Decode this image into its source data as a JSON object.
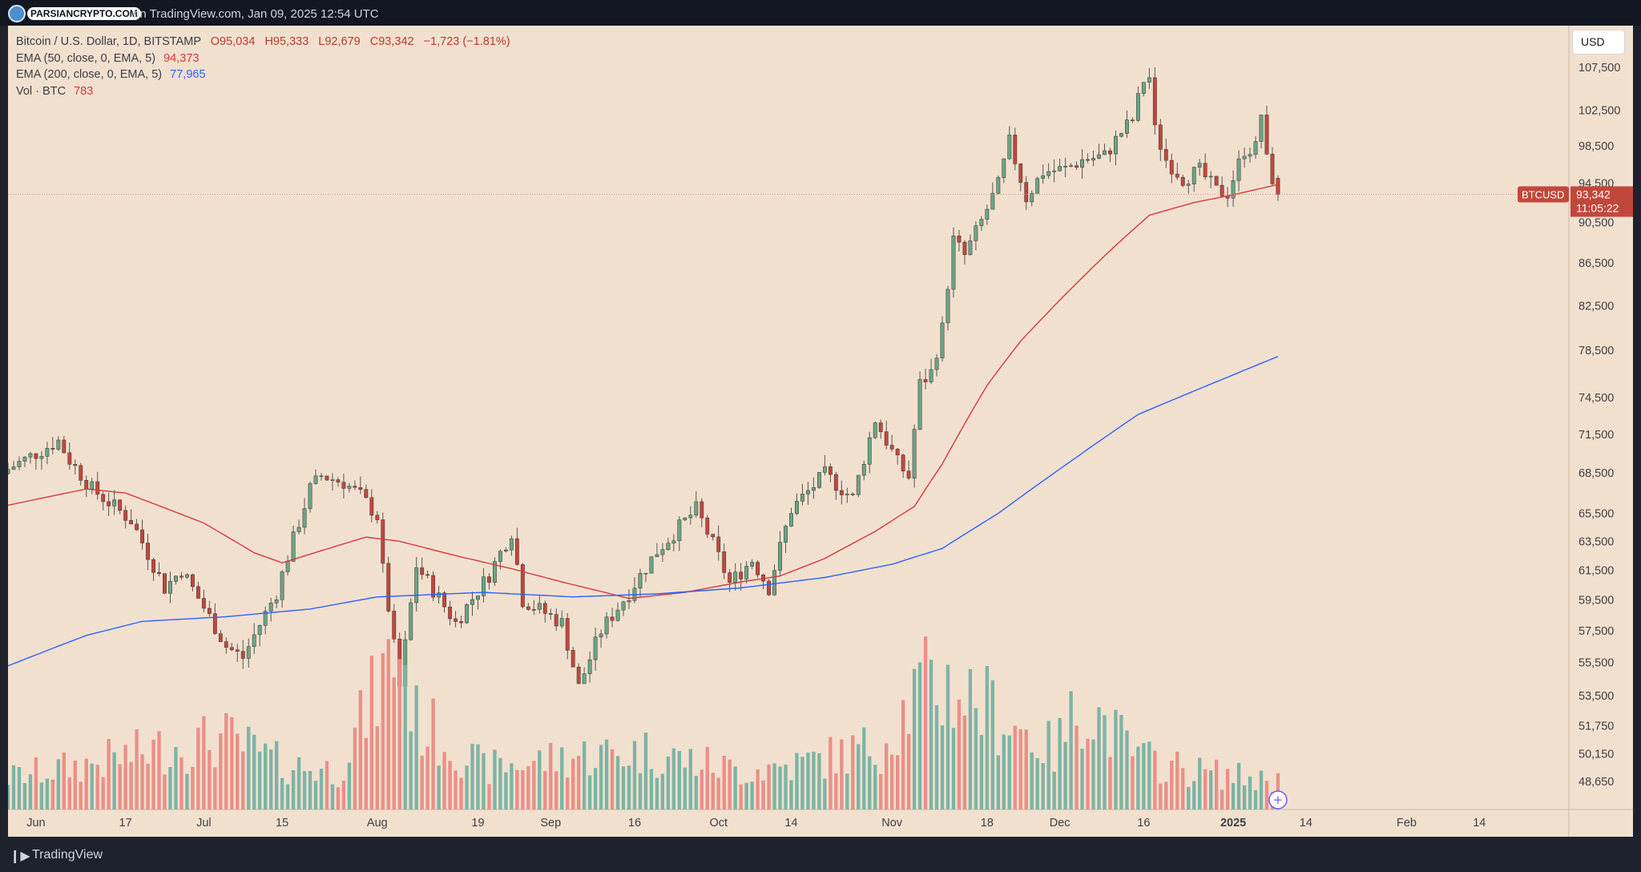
{
  "header": {
    "brand": "PARSIANCRYPTO.COM",
    "caption": "on TradingView.com, Jan 09, 2025 12:54 UTC"
  },
  "legend": {
    "symbol": "Bitcoin / U.S. Dollar, 1D, BITSTAMP",
    "open": "O95,034",
    "high": "H95,333",
    "low": "L92,679",
    "close": "C93,342",
    "change": "−1,723 (−1.81%)",
    "ema50_label": "EMA (50, close, 0, EMA, 5)",
    "ema50_value": "94,373",
    "ema200_label": "EMA (200, close, 0, EMA, 5)",
    "ema200_value": "77,965",
    "vol_label": "Vol · BTC",
    "vol_value": "783"
  },
  "currency_button": "USD",
  "footer": {
    "brand": "TradingView"
  },
  "colors": {
    "background": "#f2e0cf",
    "up_candle": "#6aa583",
    "down_candle": "#c2473b",
    "up_volume": "#7cb4a5",
    "down_volume": "#ea8f87",
    "ema50": "#d8383a",
    "ema200": "#2962ff"
  },
  "chart_data": {
    "type": "candlestick",
    "symbol": "BTCUSD",
    "price_ticks": [
      "107,500",
      "102,500",
      "98,500",
      "94,500",
      "90,500",
      "86,500",
      "82,500",
      "78,500",
      "74,500",
      "71,500",
      "68,500",
      "65,500",
      "63,500",
      "61,500",
      "59,500",
      "57,500",
      "55,500",
      "53,500",
      "51,750",
      "50,150",
      "48,650"
    ],
    "ylim": [
      47400,
      110000
    ],
    "x_ticks": [
      {
        "label": "Jun",
        "date": "2024-06-01"
      },
      {
        "label": "17",
        "date": "2024-06-17"
      },
      {
        "label": "Jul",
        "date": "2024-07-01"
      },
      {
        "label": "15",
        "date": "2024-07-15"
      },
      {
        "label": "Aug",
        "date": "2024-08-01"
      },
      {
        "label": "19",
        "date": "2024-08-19"
      },
      {
        "label": "Sep",
        "date": "2024-09-01"
      },
      {
        "label": "16",
        "date": "2024-09-16"
      },
      {
        "label": "Oct",
        "date": "2024-10-01"
      },
      {
        "label": "14",
        "date": "2024-10-14"
      },
      {
        "label": "Nov",
        "date": "2024-11-01"
      },
      {
        "label": "18",
        "date": "2024-11-18"
      },
      {
        "label": "Dec",
        "date": "2024-12-01"
      },
      {
        "label": "16",
        "date": "2024-12-16"
      },
      {
        "label": "2025",
        "date": "2025-01-01"
      },
      {
        "label": "14",
        "date": "2025-01-14"
      },
      {
        "label": "Feb",
        "date": "2025-02-01"
      },
      {
        "label": "14",
        "date": "2025-02-14"
      }
    ],
    "x_start": "2024-05-27",
    "x_end": "2025-03-02",
    "last_price": {
      "ticker": "BTCUSD",
      "price": "93,342",
      "countdown": "11:05:22",
      "value": 93342
    },
    "close_keyframes": [
      [
        "2024-05-27",
        68800
      ],
      [
        "2024-06-05",
        71000
      ],
      [
        "2024-06-07",
        69500
      ],
      [
        "2024-06-11",
        67300
      ],
      [
        "2024-06-18",
        65000
      ],
      [
        "2024-06-24",
        60300
      ],
      [
        "2024-06-27",
        61500
      ],
      [
        "2024-07-05",
        56500
      ],
      [
        "2024-07-08",
        55800
      ],
      [
        "2024-07-14",
        60000
      ],
      [
        "2024-07-20",
        67300
      ],
      [
        "2024-07-22",
        68300
      ],
      [
        "2024-07-26",
        67800
      ],
      [
        "2024-07-29",
        66800
      ],
      [
        "2024-08-01",
        65300
      ],
      [
        "2024-08-02",
        61500
      ],
      [
        "2024-08-05",
        54000
      ],
      [
        "2024-08-08",
        61800
      ],
      [
        "2024-08-15",
        58000
      ],
      [
        "2024-08-21",
        61200
      ],
      [
        "2024-08-25",
        64200
      ],
      [
        "2024-08-27",
        59500
      ],
      [
        "2024-09-03",
        58000
      ],
      [
        "2024-09-06",
        54000
      ],
      [
        "2024-09-10",
        57500
      ],
      [
        "2024-09-15",
        60000
      ],
      [
        "2024-09-18",
        61700
      ],
      [
        "2024-09-20",
        62800
      ],
      [
        "2024-09-27",
        65800
      ],
      [
        "2024-09-30",
        63300
      ],
      [
        "2024-10-03",
        60600
      ],
      [
        "2024-10-07",
        62200
      ],
      [
        "2024-10-10",
        60300
      ],
      [
        "2024-10-14",
        65800
      ],
      [
        "2024-10-20",
        68400
      ],
      [
        "2024-10-25",
        66600
      ],
      [
        "2024-10-29",
        72700
      ],
      [
        "2024-11-02",
        69300
      ],
      [
        "2024-11-04",
        68200
      ],
      [
        "2024-11-06",
        75600
      ],
      [
        "2024-11-08",
        76600
      ],
      [
        "2024-11-10",
        80400
      ],
      [
        "2024-11-12",
        88700
      ],
      [
        "2024-11-14",
        87200
      ],
      [
        "2024-11-17",
        90600
      ],
      [
        "2024-11-20",
        94300
      ],
      [
        "2024-11-22",
        98900
      ],
      [
        "2024-11-25",
        93000
      ],
      [
        "2024-11-28",
        95700
      ],
      [
        "2024-12-02",
        96000
      ],
      [
        "2024-12-05",
        97000
      ],
      [
        "2024-12-09",
        97400
      ],
      [
        "2024-12-12",
        100000
      ],
      [
        "2024-12-14",
        101400
      ],
      [
        "2024-12-16",
        106000
      ],
      [
        "2024-12-17",
        106300
      ],
      [
        "2024-12-18",
        100200
      ],
      [
        "2024-12-20",
        97000
      ],
      [
        "2024-12-23",
        95000
      ],
      [
        "2024-12-26",
        95800
      ],
      [
        "2024-12-29",
        93700
      ],
      [
        "2024-12-31",
        93500
      ],
      [
        "2025-01-03",
        98100
      ],
      [
        "2025-01-05",
        98300
      ],
      [
        "2025-01-06",
        102100
      ],
      [
        "2025-01-07",
        96900
      ],
      [
        "2025-01-08",
        95034
      ],
      [
        "2025-01-09",
        93342
      ]
    ],
    "ema50_keyframes": [
      [
        "2024-05-27",
        66100
      ],
      [
        "2024-06-10",
        67300
      ],
      [
        "2024-06-17",
        67000
      ],
      [
        "2024-07-01",
        64800
      ],
      [
        "2024-07-10",
        62700
      ],
      [
        "2024-07-15",
        62000
      ],
      [
        "2024-07-30",
        63800
      ],
      [
        "2024-08-05",
        63500
      ],
      [
        "2024-08-15",
        62500
      ],
      [
        "2024-08-25",
        61600
      ],
      [
        "2024-09-03",
        60700
      ],
      [
        "2024-09-15",
        59600
      ],
      [
        "2024-09-25",
        60000
      ],
      [
        "2024-10-05",
        60700
      ],
      [
        "2024-10-12",
        61100
      ],
      [
        "2024-10-20",
        62300
      ],
      [
        "2024-10-29",
        64200
      ],
      [
        "2024-11-05",
        66000
      ],
      [
        "2024-11-10",
        69200
      ],
      [
        "2024-11-18",
        75500
      ],
      [
        "2024-11-24",
        79300
      ],
      [
        "2024-12-01",
        83000
      ],
      [
        "2024-12-10",
        87700
      ],
      [
        "2024-12-17",
        91200
      ],
      [
        "2024-12-25",
        92500
      ],
      [
        "2025-01-01",
        93300
      ],
      [
        "2025-01-09",
        94373
      ]
    ],
    "ema200_keyframes": [
      [
        "2024-05-27",
        55300
      ],
      [
        "2024-06-10",
        57200
      ],
      [
        "2024-06-20",
        58100
      ],
      [
        "2024-07-05",
        58400
      ],
      [
        "2024-07-20",
        58900
      ],
      [
        "2024-08-01",
        59700
      ],
      [
        "2024-08-20",
        60000
      ],
      [
        "2024-09-05",
        59700
      ],
      [
        "2024-09-20",
        59900
      ],
      [
        "2024-10-05",
        60300
      ],
      [
        "2024-10-20",
        61000
      ],
      [
        "2024-11-01",
        61900
      ],
      [
        "2024-11-10",
        63000
      ],
      [
        "2024-11-20",
        65500
      ],
      [
        "2024-12-01",
        68800
      ],
      [
        "2024-12-15",
        73100
      ],
      [
        "2024-12-30",
        76000
      ],
      [
        "2025-01-09",
        77965
      ]
    ],
    "volume_keyframes": [
      [
        "2024-05-27",
        0.25
      ],
      [
        "2024-06-10",
        0.35
      ],
      [
        "2024-06-24",
        0.48
      ],
      [
        "2024-07-05",
        0.55
      ],
      [
        "2024-07-15",
        0.35
      ],
      [
        "2024-07-25",
        0.3
      ],
      [
        "2024-08-05",
        1.3
      ],
      [
        "2024-08-08",
        0.7
      ],
      [
        "2024-08-20",
        0.32
      ],
      [
        "2024-09-06",
        0.42
      ],
      [
        "2024-09-18",
        0.45
      ],
      [
        "2024-10-05",
        0.3
      ],
      [
        "2024-10-15",
        0.35
      ],
      [
        "2024-10-30",
        0.5
      ],
      [
        "2024-11-06",
        0.95
      ],
      [
        "2024-11-12",
        0.95
      ],
      [
        "2024-11-20",
        0.75
      ],
      [
        "2024-11-30",
        0.45
      ],
      [
        "2024-12-05",
        0.85
      ],
      [
        "2024-12-15",
        0.4
      ],
      [
        "2024-12-25",
        0.3
      ],
      [
        "2025-01-09",
        0.22
      ]
    ]
  }
}
